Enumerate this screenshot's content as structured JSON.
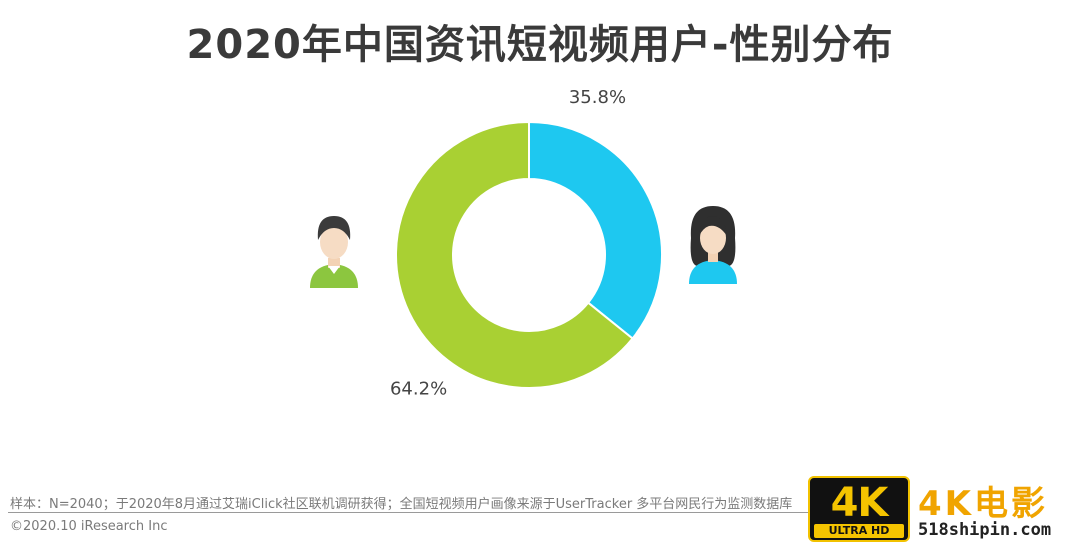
{
  "title": "2020年中国资讯短视频用户-性别分布",
  "chart_data": {
    "type": "pie",
    "donut": true,
    "slices": [
      {
        "label": "女",
        "value": 35.8,
        "display": "35.8%",
        "color": "#1ec8f0"
      },
      {
        "label": "男",
        "value": 64.2,
        "display": "64.2%",
        "color": "#a9d033"
      }
    ]
  },
  "icons": {
    "male": "male-user-icon",
    "female": "female-user-icon"
  },
  "footer": {
    "note": "样本：N=2040；于2020年8月通过艾瑞iClick社区联机调研获得；全国短视频用户画像来源于UserTracker 多平台网民行为监测数据库",
    "copyright": "©2020.10 iResearch Inc"
  },
  "watermark": {
    "badge_main": "4K",
    "badge_sub": "ULTRA HD",
    "brand": "4K电影",
    "url": "518shipin.com"
  }
}
